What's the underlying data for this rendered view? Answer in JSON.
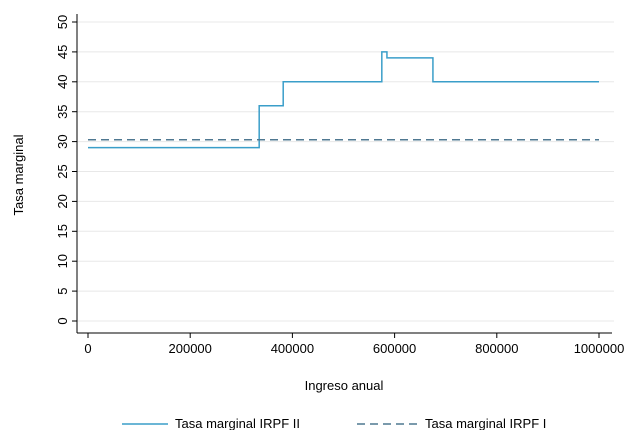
{
  "chart_data": {
    "type": "line",
    "xlabel": "Ingreso anual",
    "ylabel": "Tasa marginal",
    "xlim": [
      0,
      1000000
    ],
    "ylim": [
      0,
      50
    ],
    "x_ticks": [
      0,
      200000,
      400000,
      600000,
      800000,
      1000000
    ],
    "x_tick_labels": [
      "0",
      "200000",
      "400000",
      "600000",
      "800000",
      "1000000"
    ],
    "y_ticks": [
      0,
      5,
      10,
      15,
      20,
      25,
      30,
      35,
      40,
      45,
      50
    ],
    "y_tick_labels": [
      "0",
      "5",
      "10",
      "15",
      "20",
      "25",
      "30",
      "35",
      "40",
      "45",
      "50"
    ],
    "grid": true,
    "legend_position": "bottom",
    "series": [
      {
        "name": "Tasa marginal IRPF II",
        "color": "#3a9ec9",
        "dash": "solid",
        "step": true,
        "points": [
          [
            0,
            29
          ],
          [
            335000,
            29
          ],
          [
            335000,
            36
          ],
          [
            382000,
            36
          ],
          [
            382000,
            40
          ],
          [
            575000,
            40
          ],
          [
            575000,
            45
          ],
          [
            585000,
            45
          ],
          [
            585000,
            44
          ],
          [
            675000,
            44
          ],
          [
            675000,
            40
          ],
          [
            1000000,
            40
          ]
        ]
      },
      {
        "name": "Tasa marginal IRPF I",
        "color": "#4f7891",
        "dash": "dashed",
        "step": false,
        "points": [
          [
            0,
            30.3
          ],
          [
            1000000,
            30.3
          ]
        ]
      }
    ]
  }
}
